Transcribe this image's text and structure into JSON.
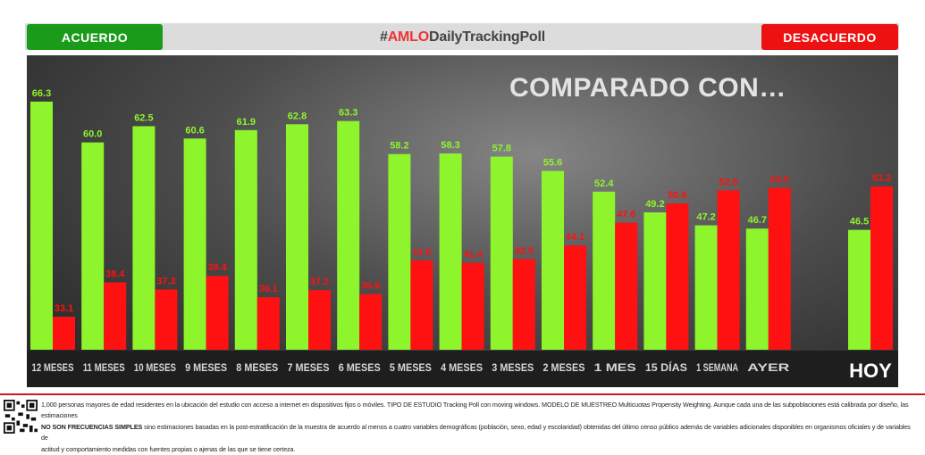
{
  "header": {
    "agree_label": "ACUERDO",
    "disagree_label": "DESACUERDO",
    "hashtag_prefix": "#",
    "hashtag_highlight": "AMLO",
    "hashtag_suffix": "DailyTrackingPoll"
  },
  "colors": {
    "agree": "#8ef52c",
    "disagree": "#ff1111"
  },
  "chart_data": {
    "type": "bar",
    "title": "COMPARADO CON…",
    "categories": [
      "12 MESES",
      "11 MESES",
      "10 MESES",
      "9 MESES",
      "8 MESES",
      "7 MESES",
      "6 MESES",
      "5 MESES",
      "4 MESES",
      "3 MESES",
      "2 MESES",
      "1 MES",
      "15 DÍAS",
      "1 SEMANA",
      "AYER",
      "HOY"
    ],
    "series": [
      {
        "name": "ACUERDO",
        "values": [
          66.3,
          60.0,
          62.5,
          60.6,
          61.9,
          62.8,
          63.3,
          58.2,
          58.3,
          57.8,
          55.6,
          52.4,
          49.2,
          47.2,
          46.7,
          46.5
        ]
      },
      {
        "name": "DESACUERDO",
        "values": [
          33.1,
          38.4,
          37.3,
          39.4,
          36.1,
          37.2,
          36.6,
          41.8,
          41.4,
          42.0,
          44.1,
          47.6,
          50.6,
          52.6,
          53.0,
          53.2
        ]
      }
    ],
    "ylim": [
      28,
      70
    ],
    "value_labels": {
      "agree": [
        "66.3",
        "60.0",
        "62.5",
        "60.6",
        "61.9",
        "62.8",
        "63.3",
        "58.2",
        "58.3",
        "57.8",
        "55.6",
        "52.4",
        "49.2",
        "47.2",
        "46.7",
        "46.5"
      ],
      "disagree": [
        "33.1",
        "38.4",
        "37.3",
        "39.4",
        "36.1",
        "37.2",
        "36.6",
        "41.8",
        "41.4",
        "42.0",
        "44.1",
        "47.6",
        "50.6",
        "52.6",
        "53.0",
        "53.2"
      ]
    }
  },
  "footer": {
    "line1": "1,000 personas mayores de edad residentes en la ubicación del estudio con acceso a internet en dispositivos fijos o móviles. TIPO DE ESTUDIO Tracking Poll con moving windows. MODELO DE MUESTREO Multicuotas Propensity Weighting. Aunque cada una de las subpoblaciones está calibrada por diseño, las estimaciones",
    "line2_bold": "NO SON FRECUENCIAS SIMPLES",
    "line2": " sino estimaciones basadas en la post-estratificación de la muestra de acuerdo al menos a cuatro variables demográficas (población, sexo, edad y escolaridad) obtenidas del último censo público además de variables adicionales disponibles en organismos oficiales y de variables de",
    "line3": "actitud y comportamiento medidas con fuentes propias o ajenas de las que se tiene certeza."
  }
}
